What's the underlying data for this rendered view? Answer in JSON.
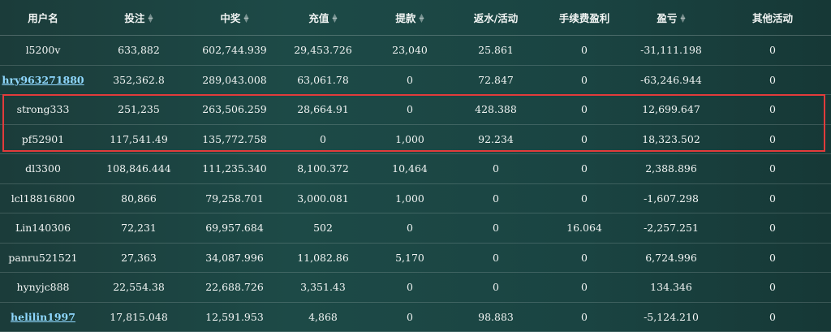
{
  "table": {
    "headers": [
      {
        "label": "用户名",
        "sortable": false
      },
      {
        "label": "投注",
        "sortable": true
      },
      {
        "label": "中奖",
        "sortable": true
      },
      {
        "label": "充值",
        "sortable": true
      },
      {
        "label": "提款",
        "sortable": true
      },
      {
        "label": "返水/活动",
        "sortable": false
      },
      {
        "label": "手续费盈利",
        "sortable": false
      },
      {
        "label": "盈亏",
        "sortable": true
      },
      {
        "label": "其他活动",
        "sortable": false
      }
    ],
    "rows": [
      {
        "user": "l5200v",
        "link": false,
        "cells": [
          "633,882",
          "602,744.939",
          "29,453.726",
          "23,040",
          "25.861",
          "0",
          "-31,111.198",
          "0"
        ]
      },
      {
        "user": "hry963271880",
        "link": true,
        "cells": [
          "352,362.8",
          "289,043.008",
          "63,061.78",
          "0",
          "72.847",
          "0",
          "-63,246.944",
          "0"
        ]
      },
      {
        "user": "strong333",
        "link": false,
        "cells": [
          "251,235",
          "263,506.259",
          "28,664.91",
          "0",
          "428.388",
          "0",
          "12,699.647",
          "0"
        ]
      },
      {
        "user": "pf52901",
        "link": false,
        "cells": [
          "117,541.49",
          "135,772.758",
          "0",
          "1,000",
          "92.234",
          "0",
          "18,323.502",
          "0"
        ]
      },
      {
        "user": "dl3300",
        "link": false,
        "cells": [
          "108,846.444",
          "111,235.340",
          "8,100.372",
          "10,464",
          "0",
          "0",
          "2,388.896",
          "0"
        ]
      },
      {
        "user": "lcl18816800",
        "link": false,
        "cells": [
          "80,866",
          "79,258.701",
          "3,000.081",
          "1,000",
          "0",
          "0",
          "-1,607.298",
          "0"
        ]
      },
      {
        "user": "Lin140306",
        "link": false,
        "cells": [
          "72,231",
          "69,957.684",
          "502",
          "0",
          "0",
          "16.064",
          "-2,257.251",
          "0"
        ]
      },
      {
        "user": "panru521521",
        "link": false,
        "cells": [
          "27,363",
          "34,087.996",
          "11,082.86",
          "5,170",
          "0",
          "0",
          "6,724.996",
          "0"
        ]
      },
      {
        "user": "hynyjc888",
        "link": false,
        "cells": [
          "22,554.38",
          "22,688.726",
          "3,351.43",
          "0",
          "0",
          "0",
          "134.346",
          "0"
        ]
      },
      {
        "user": "helilin1997",
        "link": true,
        "cells": [
          "17,815.048",
          "12,591.953",
          "4,868",
          "0",
          "98.883",
          "0",
          "-5,124.210",
          "0"
        ]
      }
    ]
  },
  "colors": {
    "highlight_border": "#e23b3b",
    "link": "#8fd8ff"
  }
}
